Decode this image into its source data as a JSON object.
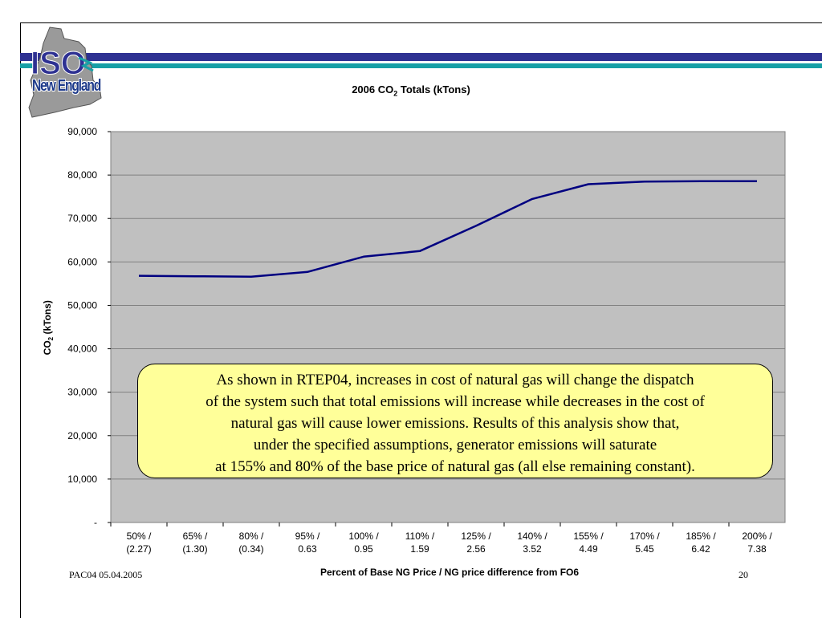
{
  "logo": {
    "text": "ISO New England",
    "lines": [
      "ISO",
      "New England"
    ]
  },
  "chart_data": {
    "type": "line",
    "title": "2006 CO2 Totals (kTons)",
    "title_parts": {
      "prefix": "2006 CO",
      "sub": "2",
      "suffix": " Totals (kTons)"
    },
    "ylabel": "CO2 (kTons)",
    "ylabel_parts": {
      "prefix": "CO",
      "sub": "2",
      "suffix": " (kTons)"
    },
    "xlabel": "Percent of Base NG Price / NG price difference from FO6",
    "ylim": [
      0,
      90000
    ],
    "yticks": [
      "-",
      "10,000",
      "20,000",
      "30,000",
      "40,000",
      "50,000",
      "60,000",
      "70,000",
      "80,000",
      "90,000"
    ],
    "grid": true,
    "categories": [
      [
        "50% /",
        "(2.27)"
      ],
      [
        "65% /",
        "(1.30)"
      ],
      [
        "80% /",
        "(0.34)"
      ],
      [
        "95% /",
        "0.63"
      ],
      [
        "100% /",
        "0.95"
      ],
      [
        "110% /",
        "1.59"
      ],
      [
        "125% /",
        "2.56"
      ],
      [
        "140% /",
        "3.52"
      ],
      [
        "155% /",
        "4.49"
      ],
      [
        "170% /",
        "5.45"
      ],
      [
        "185% /",
        "6.42"
      ],
      [
        "200% /",
        "7.38"
      ]
    ],
    "series": [
      {
        "values": [
          56800,
          56700,
          56600,
          57700,
          61200,
          62500,
          68300,
          74500,
          77900,
          78500,
          78600,
          78600
        ]
      }
    ],
    "colors": {
      "plot_bg": "#c0c0c0",
      "line": "#000080",
      "grid": "#808080"
    }
  },
  "callout": {
    "lines": [
      "As shown in RTEP04, increases in cost of natural gas will change the dispatch",
      "of the system such that total emissions will increase while decreases in the cost of",
      "natural gas will cause lower emissions. Results of this analysis show that,",
      "under the specified assumptions, generator emissions will saturate",
      "at 155% and 80% of the base price of natural gas (all else remaining constant)."
    ]
  },
  "footer": {
    "left": "PAC04 05.04.2005",
    "page_number": "20"
  },
  "colors": {
    "band_navy": "#2e3192",
    "band_teal": "#17a0a6",
    "callout_bg": "#ffff99"
  }
}
